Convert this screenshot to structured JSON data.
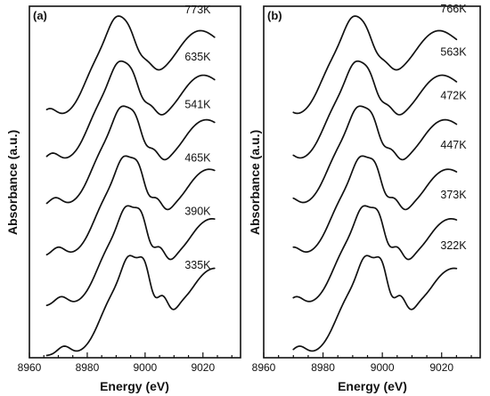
{
  "chart_data": [
    {
      "type": "line",
      "panel_label": "(a)",
      "xlabel": "Energy (eV)",
      "ylabel": "Absorbance (a.u.)",
      "xlim": [
        8960,
        9033
      ],
      "xticks": [
        8960,
        8980,
        9000,
        9020
      ],
      "ylim": [
        0,
        7.1
      ],
      "yticks_shown": false,
      "grid": false,
      "x_range_data": [
        8966,
        9024
      ],
      "series": [
        {
          "name": "335K",
          "offset": 0.0,
          "edge_shift": 0,
          "wiggle": 0.15
        },
        {
          "name": "390K",
          "offset": 1.0,
          "edge_shift": -1,
          "wiggle": 0.12
        },
        {
          "name": "465K",
          "offset": 2.0,
          "edge_shift": -2,
          "wiggle": 0.1
        },
        {
          "name": "541K",
          "offset": 3.0,
          "edge_shift": -3,
          "wiggle": 0.08
        },
        {
          "name": "635K",
          "offset": 3.9,
          "edge_shift": -4,
          "wiggle": 0.06
        },
        {
          "name": "773K",
          "offset": 4.8,
          "edge_shift": -5,
          "wiggle": 0.04
        }
      ],
      "label_x": 9010
    },
    {
      "type": "line",
      "panel_label": "(b)",
      "xlabel": "Energy (eV)",
      "ylabel": "Absorbance (a.u.)",
      "xlim": [
        8960,
        9033
      ],
      "xticks": [
        8960,
        8980,
        9000,
        9020
      ],
      "ylim": [
        0,
        7.1
      ],
      "yticks_shown": false,
      "grid": false,
      "x_range_data": [
        8970,
        9025
      ],
      "series": [
        {
          "name": "322K",
          "offset": 0.0,
          "edge_shift": 0,
          "wiggle": 0.15
        },
        {
          "name": "373K",
          "offset": 1.0,
          "edge_shift": -1,
          "wiggle": 0.12
        },
        {
          "name": "447K",
          "offset": 2.0,
          "edge_shift": -2,
          "wiggle": 0.1
        },
        {
          "name": "472K",
          "offset": 3.0,
          "edge_shift": -3,
          "wiggle": 0.08
        },
        {
          "name": "563K",
          "offset": 3.9,
          "edge_shift": -4,
          "wiggle": 0.06
        },
        {
          "name": "766K",
          "offset": 4.8,
          "edge_shift": -5,
          "wiggle": 0.04
        }
      ],
      "label_x": 9016
    }
  ]
}
